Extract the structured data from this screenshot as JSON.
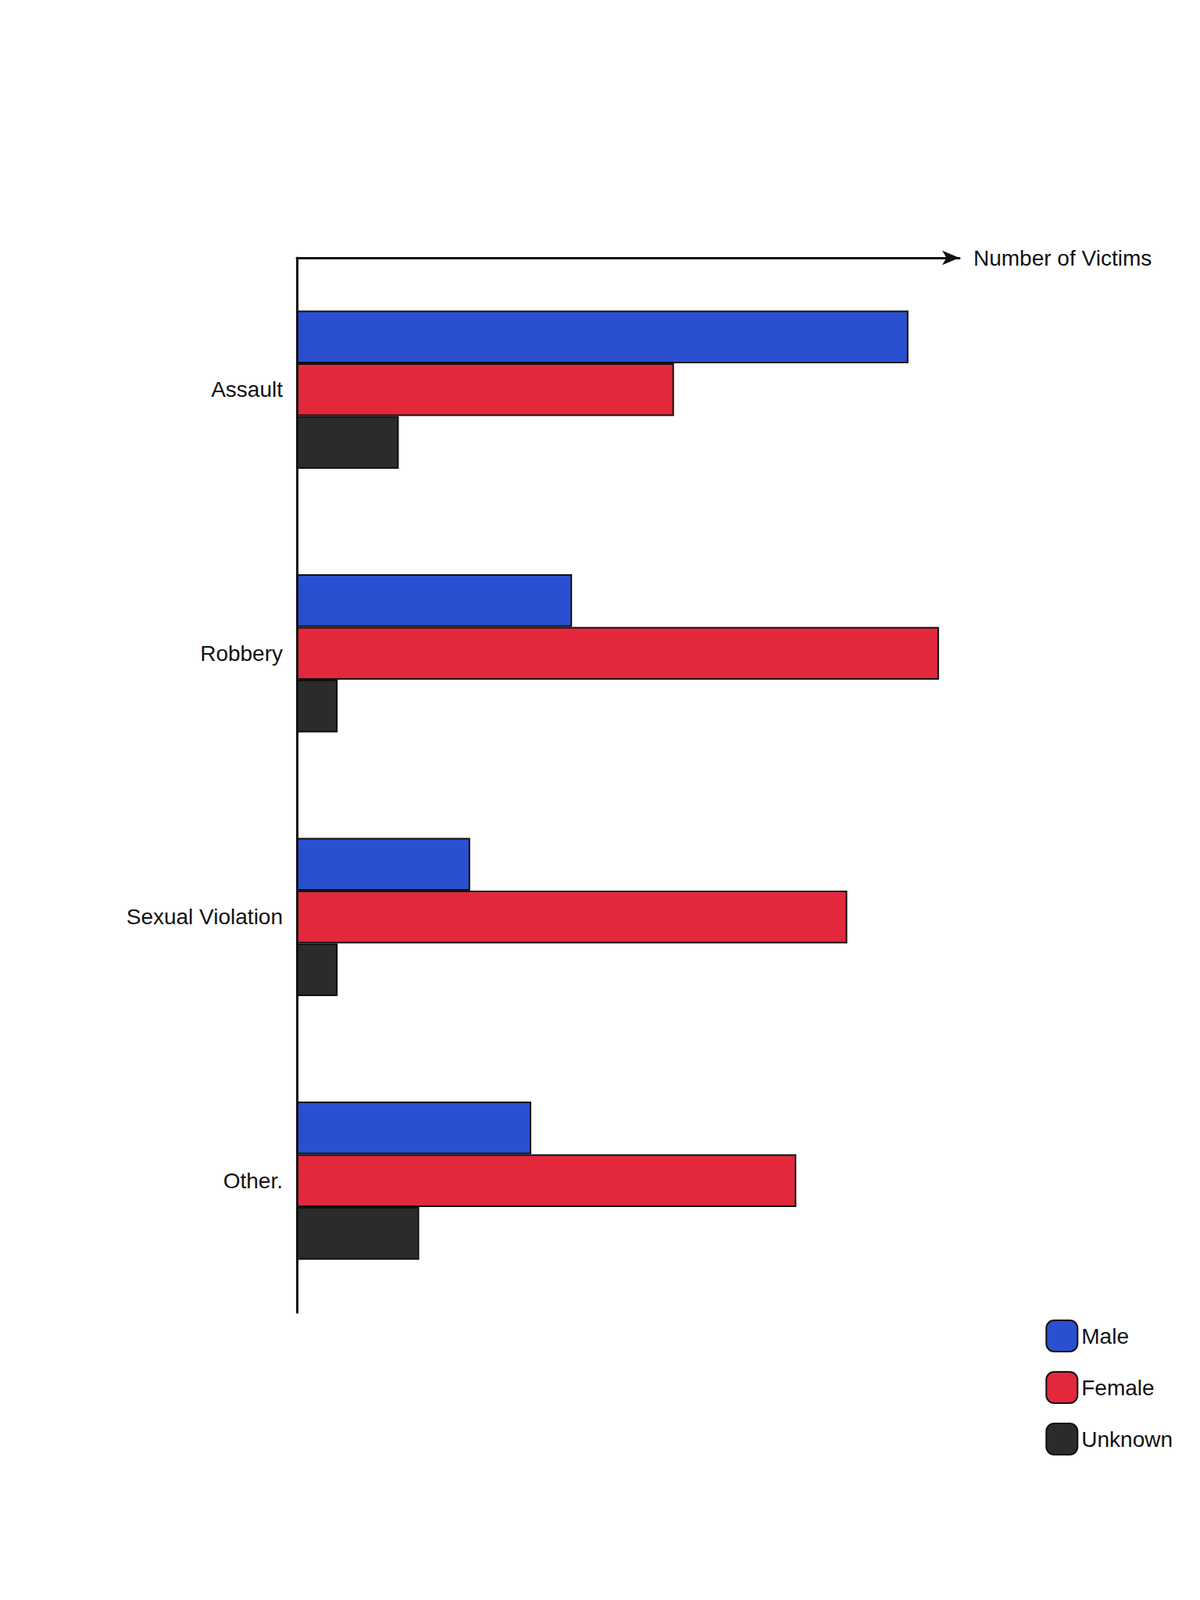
{
  "chart_data": {
    "type": "bar",
    "orientation": "horizontal",
    "xlabel": "Number of Victims",
    "categories": [
      "Assault",
      "Robbery",
      "Sexual Violation",
      "Other."
    ],
    "series": [
      {
        "name": "Male",
        "color": "#2a4fd0",
        "values": [
          60,
          27,
          17,
          23
        ]
      },
      {
        "name": "Female",
        "color": "#e3283c",
        "values": [
          37,
          63,
          54,
          49
        ]
      },
      {
        "name": "Unknown",
        "color": "#2b2b2b",
        "values": [
          10,
          4,
          4,
          12
        ]
      }
    ],
    "xlim": [
      0,
      65
    ],
    "tick_labels": "y",
    "grid": false,
    "legend": "lower right"
  }
}
